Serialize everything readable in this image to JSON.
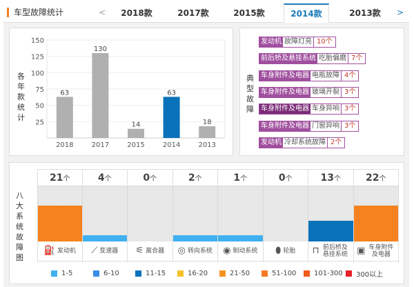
{
  "header": {
    "title": "车型故障统计",
    "prev": "<",
    "next": ">",
    "tabs": [
      {
        "label": "2018款"
      },
      {
        "label": "2017款"
      },
      {
        "label": "2015款"
      },
      {
        "label": "2014款",
        "active": true
      },
      {
        "label": "2013款"
      }
    ]
  },
  "chart_data": {
    "type": "bar",
    "ylabel": "各年款统计",
    "categories": [
      "2018",
      "2017",
      "2015",
      "2014",
      "2013"
    ],
    "values": [
      63,
      130,
      14,
      63,
      18
    ],
    "yticks": [
      "25",
      "50",
      "75",
      "100",
      "125",
      "150"
    ],
    "ylim": [
      0,
      150
    ],
    "highlight": "2014",
    "colors": {
      "default": "#b0b0b0",
      "highlight": "#0a72ba"
    },
    "grid": true
  },
  "faults": {
    "label": "典型故障",
    "items": [
      {
        "system": "发动机",
        "fault": "故障灯亮",
        "count": "10个"
      },
      {
        "system": "前后桥及悬挂系统",
        "fault": "吃胎偏磨",
        "count": "7个"
      },
      {
        "system": "车身附件及电器",
        "fault": "电瓶故障",
        "count": "4个"
      },
      {
        "system": "车身附件及电器",
        "fault": "玻璃开裂",
        "count": "3个"
      },
      {
        "system": "车身附件及电器",
        "fault": "车身异响",
        "count": "3个"
      },
      {
        "system": "车身附件及电器",
        "fault": "门窗异响",
        "count": "3个"
      },
      {
        "system": "发动机",
        "fault": "冷却系统故障",
        "count": "2个"
      }
    ]
  },
  "systems": {
    "label": "八大系统故障图",
    "unit": "个",
    "items": [
      {
        "name": "发动机",
        "count": "21",
        "icon": "engine-icon",
        "color": "#f5821f"
      },
      {
        "name": "变速器",
        "count": "4",
        "icon": "gear-shift-icon",
        "color": "#3fb0f0"
      },
      {
        "name": "离合器",
        "count": "0",
        "icon": "clutch-icon",
        "color": ""
      },
      {
        "name": "转向系统",
        "count": "2",
        "icon": "steering-wheel-icon",
        "color": "#3fb0f0"
      },
      {
        "name": "制动系统",
        "count": "1",
        "icon": "brake-disc-icon",
        "color": "#3fb0f0"
      },
      {
        "name": "轮胎",
        "count": "0",
        "icon": "tire-icon",
        "color": ""
      },
      {
        "name": "前后桥及悬挂系统",
        "count": "13",
        "icon": "axle-icon",
        "color": "#0a72ba"
      },
      {
        "name": "车身附件及电器",
        "count": "22",
        "icon": "battery-icon",
        "color": "#f5821f"
      }
    ]
  },
  "legend": [
    {
      "label": "1-5",
      "color": "#3fb0f0"
    },
    {
      "label": "6-10",
      "color": "#3a8ee6"
    },
    {
      "label": "11-15",
      "color": "#0a72ba"
    },
    {
      "label": "16-20",
      "color": "#f8c12c"
    },
    {
      "label": "21-50",
      "color": "#f5921f"
    },
    {
      "label": "51-100",
      "color": "#f57a25"
    },
    {
      "label": "101-300",
      "color": "#f05a1a"
    },
    {
      "label": "300以上",
      "color": "#e8202a"
    }
  ]
}
